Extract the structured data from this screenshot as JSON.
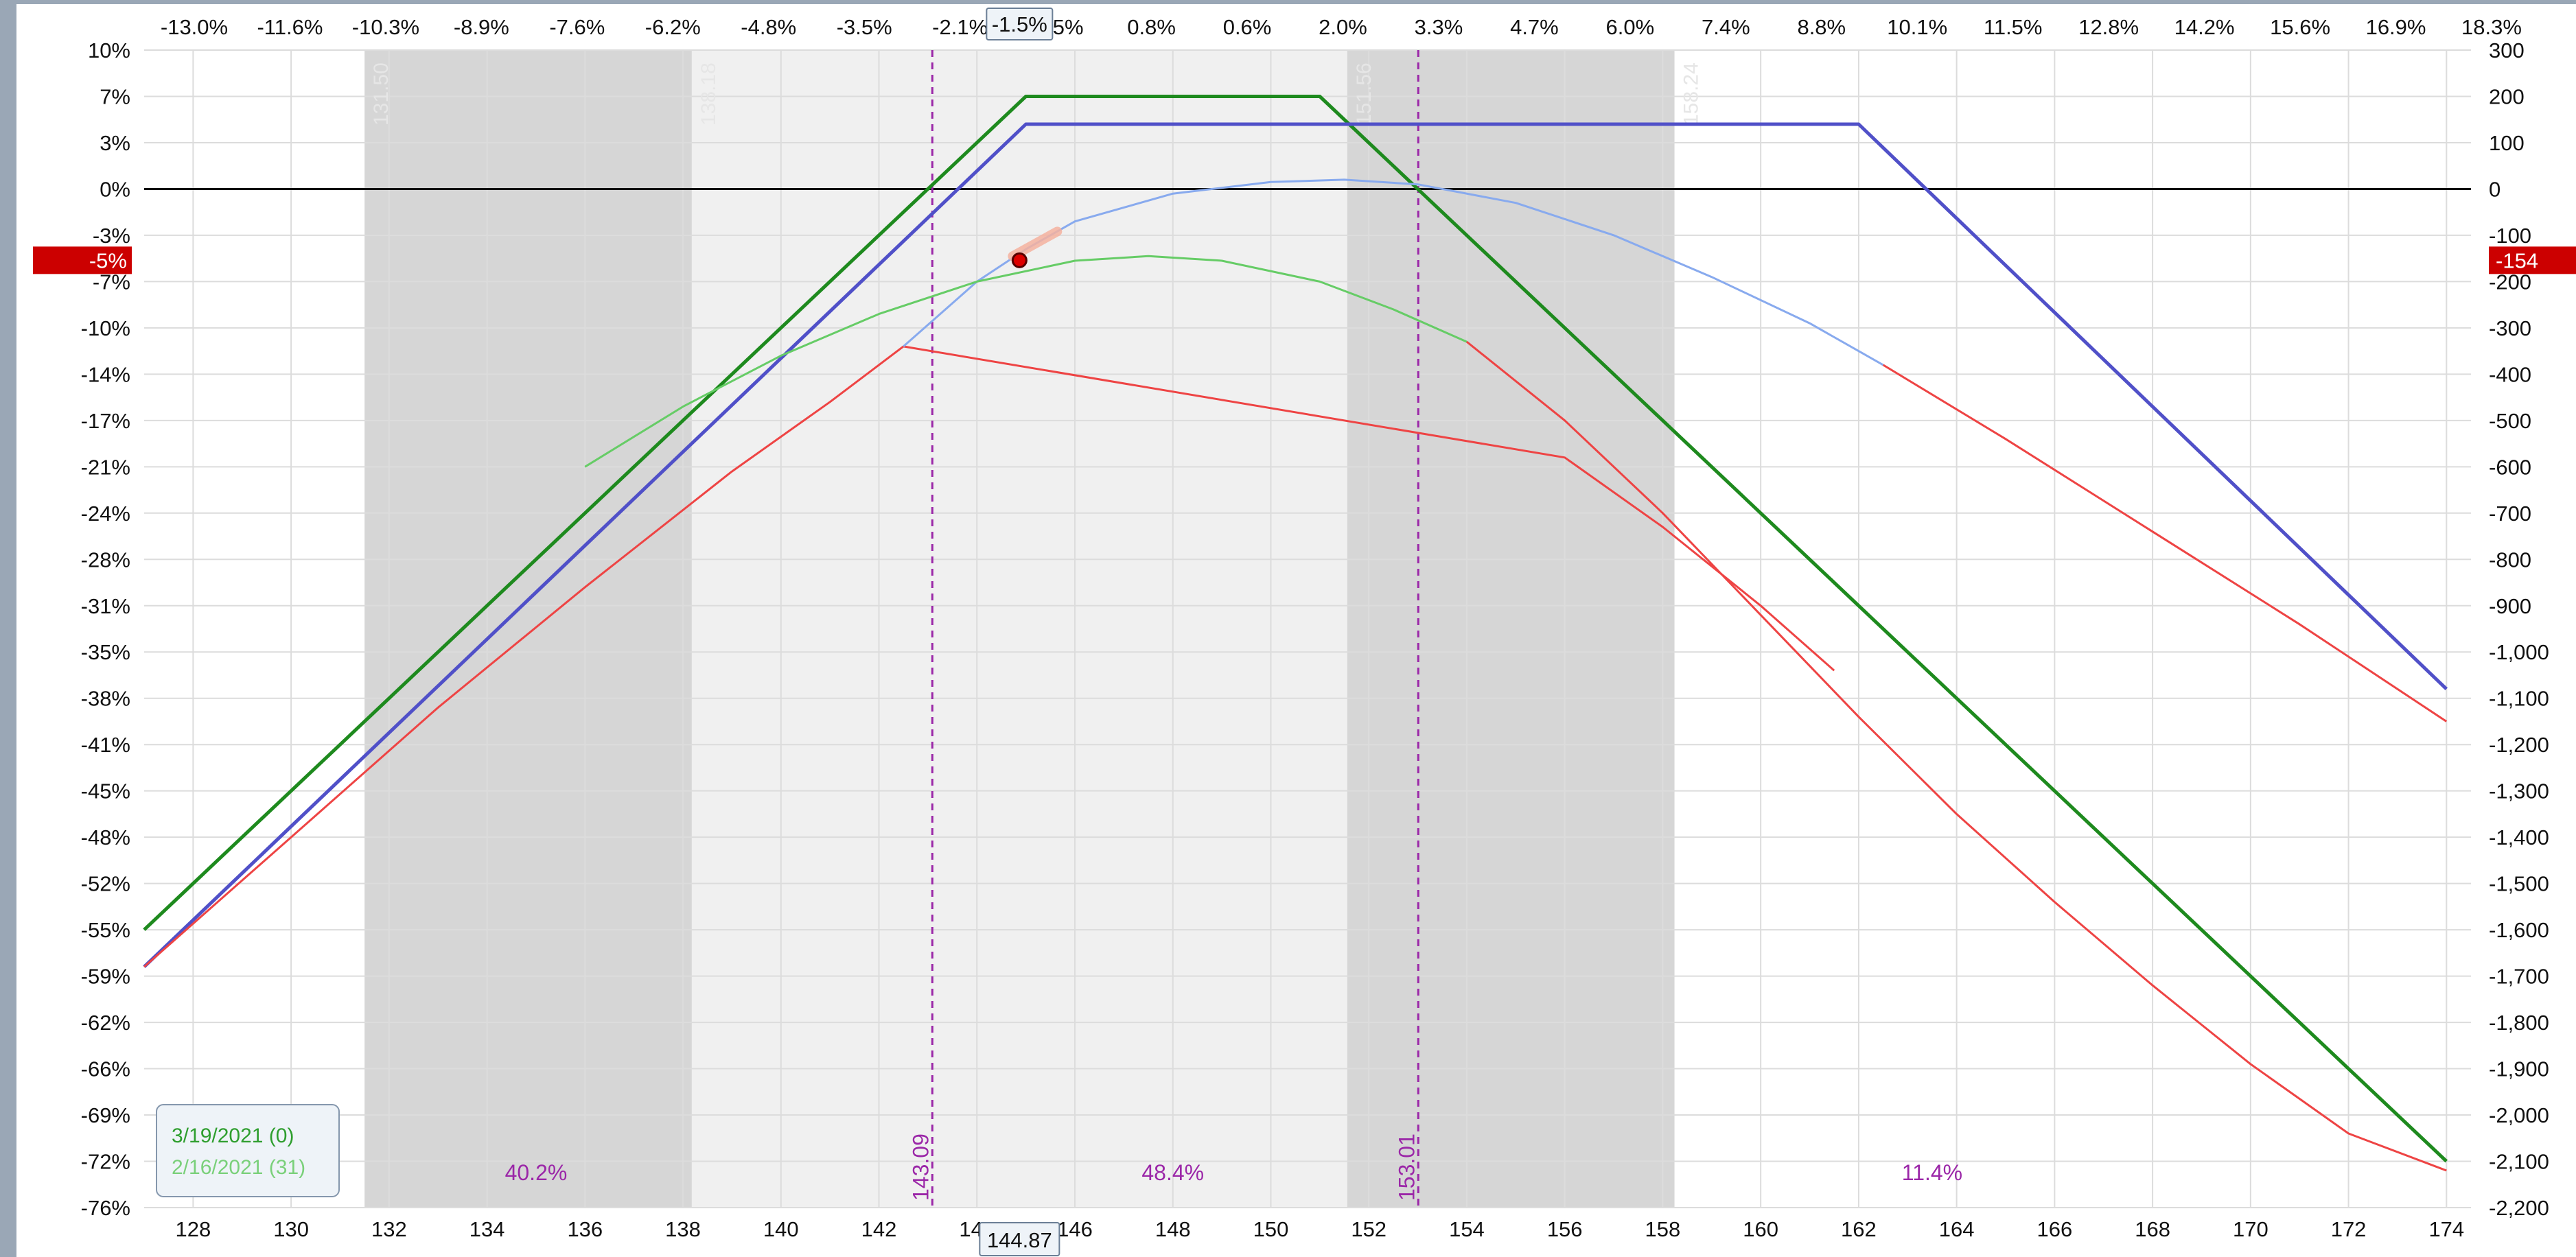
{
  "chart_data": {
    "type": "line",
    "x_axis": {
      "range": [
        127,
        174.5
      ],
      "ticks": [
        128,
        130,
        132,
        134,
        136,
        138,
        140,
        142,
        144,
        146,
        148,
        150,
        152,
        154,
        156,
        158,
        160,
        162,
        164,
        166,
        168,
        170,
        172,
        174
      ]
    },
    "x_pct_ticks": [
      "-13.0%",
      "-11.6%",
      "-10.3%",
      "-8.9%",
      "-7.6%",
      "-6.2%",
      "-4.8%",
      "-3.5%",
      "-2.1%",
      "-1.5%",
      "0.8%",
      "0.6%",
      "2.0%",
      "3.3%",
      "4.7%",
      "6.0%",
      "7.4%",
      "8.8%",
      "10.1%",
      "11.5%",
      "12.8%",
      "14.2%",
      "15.6%",
      "16.9%",
      "18.3%"
    ],
    "y_left_ticks": [
      "10%",
      "7%",
      "3%",
      "0%",
      "-3%",
      "-7%",
      "-10%",
      "-14%",
      "-17%",
      "-21%",
      "-24%",
      "-28%",
      "-31%",
      "-35%",
      "-38%",
      "-41%",
      "-45%",
      "-48%",
      "-52%",
      "-55%",
      "-59%",
      "-62%",
      "-66%",
      "-69%",
      "-72%",
      "-76%"
    ],
    "y_right_ticks": [
      "300",
      "200",
      "100",
      "0",
      "-100",
      "-200",
      "-300",
      "-400",
      "-500",
      "-600",
      "-700",
      "-800",
      "-900",
      "-1,000",
      "-1,100",
      "-1,200",
      "-1,300",
      "-1,400",
      "-1,500",
      "-1,600",
      "-1,700",
      "-1,800",
      "-1,900",
      "-2,000",
      "-2,100",
      "-2,200"
    ],
    "y_range": [
      -2200,
      300
    ],
    "current_price": "144.87",
    "current_pct": "-1.5%",
    "current_pl_pct": "-5%",
    "current_pl": "-154",
    "current_point": {
      "x": 144.87,
      "y": -154
    },
    "breakevens": [
      {
        "x": 143.09,
        "label": "143.09"
      },
      {
        "x": 153.01,
        "label": "153.01"
      }
    ],
    "sd_levels": [
      {
        "x": 131.5,
        "label": "131.50"
      },
      {
        "x": 138.18,
        "label": "138.18"
      },
      {
        "x": 151.56,
        "label": "151.56"
      },
      {
        "x": 158.24,
        "label": "158.24"
      }
    ],
    "zone_labels": [
      {
        "x": 135.0,
        "text": "40.2%"
      },
      {
        "x": 148.0,
        "text": "48.4%"
      },
      {
        "x": 163.5,
        "text": "11.4%"
      }
    ],
    "series": [
      {
        "color": "#1e8a1e",
        "points": [
          [
            127,
            -1600
          ],
          [
            145,
            200
          ],
          [
            151,
            200
          ],
          [
            174,
            -2100
          ]
        ]
      },
      {
        "color": "#5050c8",
        "points": [
          [
            127,
            -1680
          ],
          [
            145,
            140
          ],
          [
            162,
            140
          ],
          [
            174,
            -1080
          ]
        ]
      },
      {
        "color": "#ee4444",
        "points": [
          [
            127,
            -1680
          ],
          [
            130,
            -1400
          ],
          [
            133,
            -1120
          ],
          [
            136,
            -860
          ],
          [
            139,
            -610
          ],
          [
            141,
            -460
          ],
          [
            142.5,
            -340
          ],
          [
            156,
            -580
          ],
          [
            158,
            -730
          ],
          [
            160,
            -900
          ],
          [
            161.5,
            -1040
          ]
        ]
      },
      {
        "color": "#88aaee",
        "points": [
          [
            142.5,
            -340
          ],
          [
            144,
            -200
          ],
          [
            145,
            -130
          ],
          [
            146,
            -70
          ],
          [
            148,
            -10
          ],
          [
            150,
            15
          ],
          [
            151.5,
            20
          ],
          [
            153,
            10
          ],
          [
            155,
            -30
          ],
          [
            157,
            -100
          ],
          [
            159,
            -190
          ],
          [
            161,
            -290
          ],
          [
            162.5,
            -380
          ]
        ]
      },
      {
        "color": "#ee4444",
        "points": [
          [
            162.5,
            -380
          ],
          [
            165,
            -540
          ],
          [
            168,
            -740
          ],
          [
            171,
            -940
          ],
          [
            174,
            -1150
          ]
        ]
      },
      {
        "color": "#66cc66",
        "points": [
          [
            136,
            -600
          ],
          [
            138,
            -470
          ],
          [
            140,
            -360
          ],
          [
            142,
            -270
          ],
          [
            144,
            -200
          ],
          [
            146,
            -155
          ],
          [
            147.5,
            -145
          ],
          [
            149,
            -155
          ],
          [
            151,
            -200
          ],
          [
            152.5,
            -260
          ],
          [
            154,
            -330
          ]
        ]
      },
      {
        "color": "#ee4444",
        "points": [
          [
            154,
            -330
          ],
          [
            156,
            -500
          ],
          [
            158,
            -700
          ],
          [
            160,
            -920
          ],
          [
            162,
            -1140
          ],
          [
            164,
            -1350
          ],
          [
            166,
            -1540
          ],
          [
            168,
            -1720
          ],
          [
            170,
            -1890
          ],
          [
            172,
            -2040
          ],
          [
            174,
            -2120
          ]
        ]
      }
    ],
    "legend": [
      {
        "label": "3/19/2021 (0)",
        "color": "#2e9e2e"
      },
      {
        "label": "2/16/2021 (31)",
        "color": "#7ad07a"
      }
    ],
    "grid": true
  }
}
